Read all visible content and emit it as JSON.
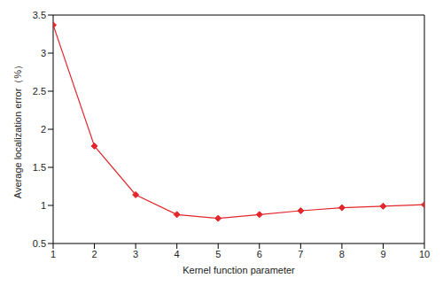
{
  "chart_data": {
    "type": "line",
    "x_label": "Kernel function parameter",
    "y_label": "Average localization error（%）",
    "x": [
      1,
      2,
      3,
      4,
      5,
      6,
      7,
      8,
      9,
      10
    ],
    "values": [
      3.37,
      1.78,
      1.14,
      0.88,
      0.83,
      0.88,
      0.93,
      0.97,
      0.99,
      1.01
    ],
    "color": "#e3262b",
    "marker": "diamond",
    "xlim": [
      1,
      10
    ],
    "xticks": [
      1,
      2,
      3,
      4,
      5,
      6,
      7,
      8,
      9,
      10
    ],
    "ylim": [
      0.5,
      3.5
    ],
    "yticks": [
      0.5,
      1,
      1.5,
      2,
      2.5,
      3,
      3.5
    ],
    "grid": false
  }
}
